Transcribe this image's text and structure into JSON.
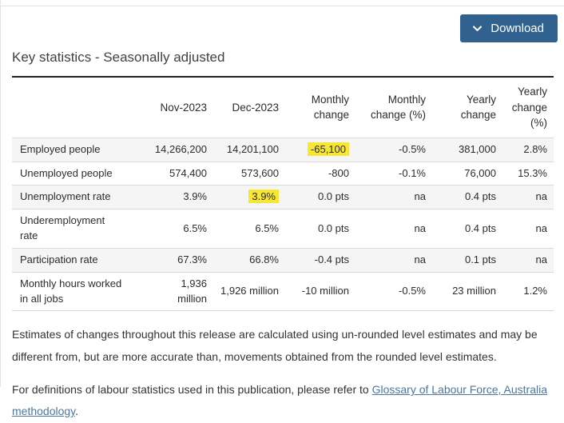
{
  "toolbar": {
    "download_label": "Download"
  },
  "heading": "Key statistics - Seasonally adjusted",
  "table": {
    "columns": [
      "",
      "Nov-2023",
      "Dec-2023",
      "Monthly change",
      "Monthly change (%)",
      "Yearly change",
      "Yearly change (%)"
    ],
    "rows": [
      {
        "label": "Employed people",
        "values": [
          "14,266,200",
          "14,201,100",
          "-65,100",
          "-0.5%",
          "381,000",
          "2.8%"
        ],
        "highlight": [
          2
        ]
      },
      {
        "label": "Unemployed people",
        "values": [
          "574,400",
          "573,600",
          "-800",
          "-0.1%",
          "76,000",
          "15.3%"
        ],
        "highlight": []
      },
      {
        "label": "Unemployment rate",
        "values": [
          "3.9%",
          "3.9%",
          "0.0 pts",
          "na",
          "0.4 pts",
          "na"
        ],
        "highlight": [
          1
        ]
      },
      {
        "label": "Underemployment\nrate",
        "values": [
          "6.5%",
          "6.5%",
          "0.0 pts",
          "na",
          "0.4 pts",
          "na"
        ],
        "highlight": []
      },
      {
        "label": "Participation rate",
        "values": [
          "67.3%",
          "66.8%",
          "-0.4 pts",
          "na",
          "0.1 pts",
          "na"
        ],
        "highlight": []
      },
      {
        "label": "Monthly hours worked\nin all jobs",
        "values": [
          "1,936 million",
          "1,926 million",
          "-10 million",
          "-0.5%",
          "23 million",
          "1.2%"
        ],
        "highlight": []
      }
    ]
  },
  "notes": {
    "paragraph1": "Estimates of changes throughout this release are calculated using un-rounded level estimates and may be different from, but are more accurate than, movements obtained from the rounded level estimates.",
    "paragraph2_prefix": "For definitions of labour statistics used in this publication, please refer to ",
    "link_text": "Glossary of Labour Force, Australia methodology",
    "paragraph2_suffix": "."
  },
  "colors": {
    "button_bg": "#30618f",
    "highlight_yellow": "#f7e733",
    "link_blue": "#4d779f",
    "row_stripe": "#f5f5f5",
    "table_top_border": "#1f1f1f"
  },
  "icons": {
    "download_chevron": "chevron-down"
  }
}
